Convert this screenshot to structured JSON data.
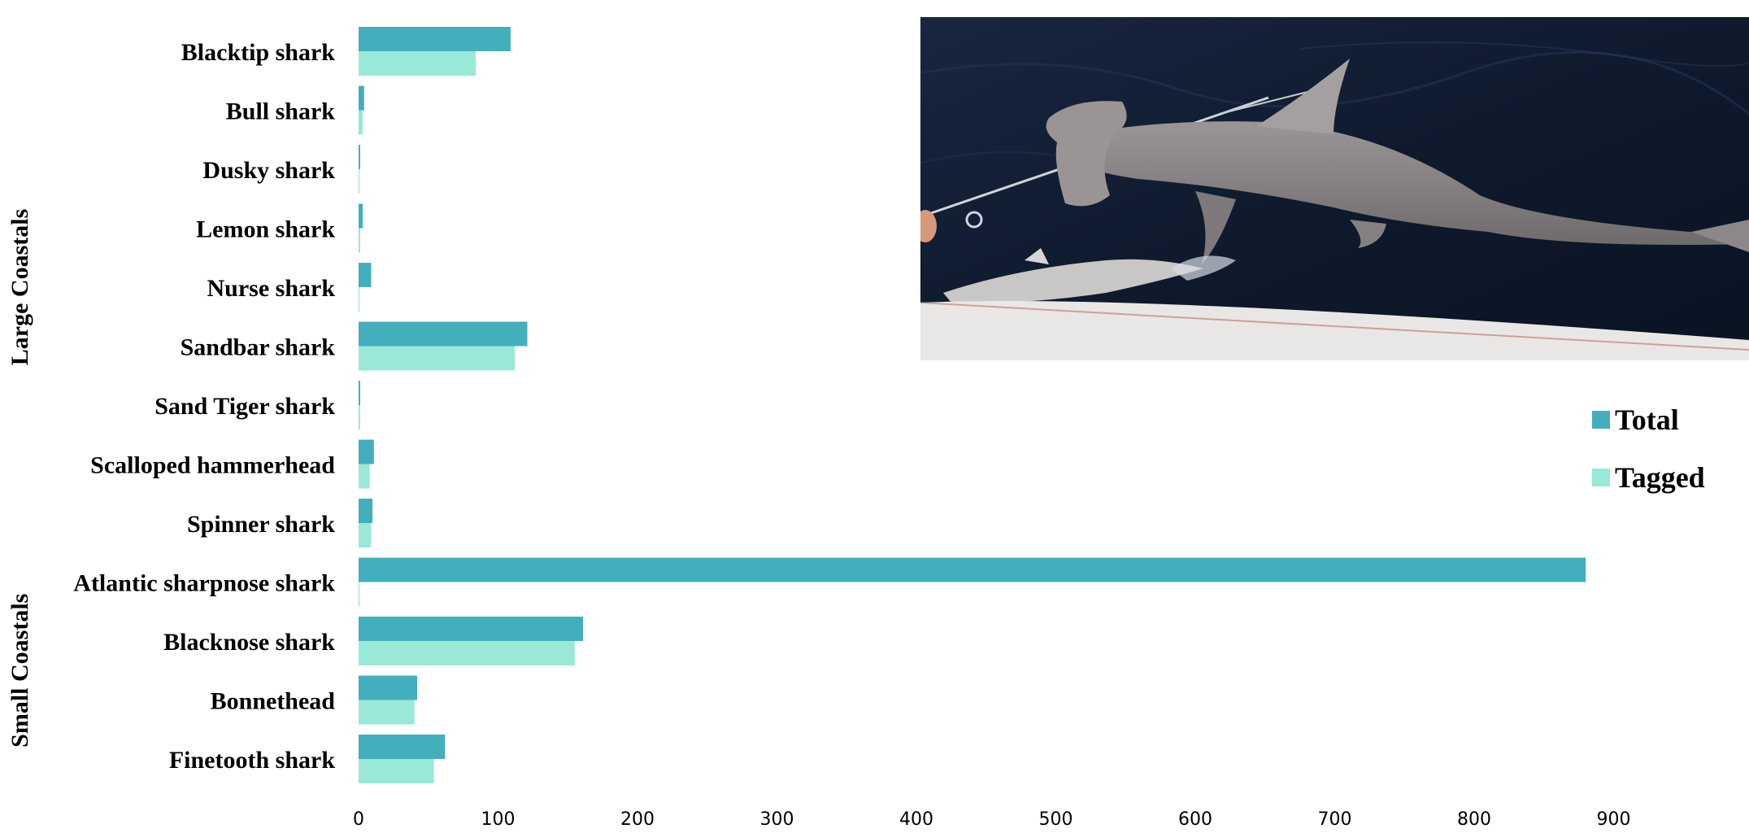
{
  "chart_data": {
    "type": "bar",
    "orientation": "horizontal",
    "categories": [
      "Blacktip shark",
      "Bull shark",
      "Dusky shark",
      "Lemon shark",
      "Nurse shark",
      "Sandbar shark",
      "Sand Tiger shark",
      "Scalloped hammerhead",
      "Spinner shark",
      "Atlantic sharpnose shark",
      "Blacknose shark",
      "Bonnethead",
      "Finetooth shark"
    ],
    "groups": [
      {
        "label": "Large Coastals",
        "categories": [
          "Blacktip shark",
          "Bull shark",
          "Dusky shark",
          "Lemon shark",
          "Nurse shark",
          "Sandbar shark",
          "Sand Tiger shark",
          "Scalloped hammerhead",
          "Spinner shark"
        ]
      },
      {
        "label": "Small Coastals",
        "categories": [
          "Atlantic sharpnose shark",
          "Blacknose shark",
          "Bonnethead",
          "Finetooth shark"
        ]
      }
    ],
    "series": [
      {
        "name": "Total",
        "color": "#44afbc",
        "values": [
          109,
          4,
          1,
          3,
          9,
          121,
          1,
          11,
          10,
          880,
          161,
          42,
          62
        ]
      },
      {
        "name": "Tagged",
        "color": "#99e8d8",
        "values": [
          84,
          3,
          0,
          1,
          0,
          112,
          1,
          8,
          9,
          0,
          155,
          40,
          54
        ]
      }
    ],
    "xlim": [
      0,
      1000
    ],
    "xticks": [
      0,
      100,
      200,
      300,
      400,
      500,
      600,
      700,
      800,
      900
    ],
    "legend_position": "right",
    "grid": false
  },
  "photo": {
    "subject": "hammerhead shark on a fishing line beside a boat, with a small shark on the deck edge",
    "colors": {
      "water": "#101c30",
      "shark": "#8f8a8a",
      "deck": "#e9e7e5"
    }
  }
}
